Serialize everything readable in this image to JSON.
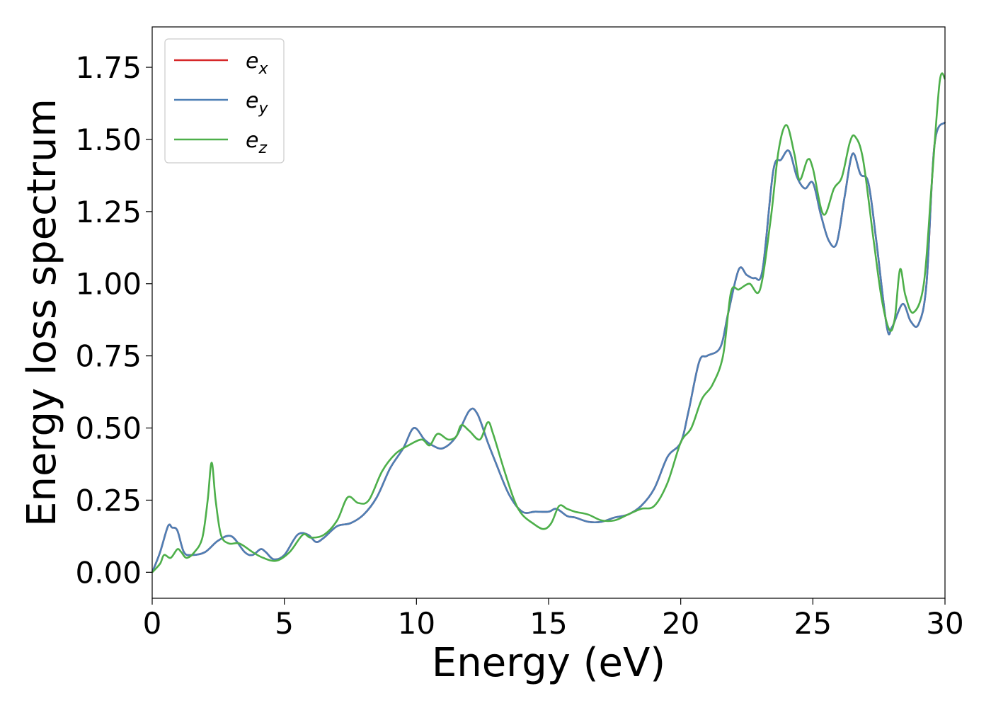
{
  "chart_data": {
    "type": "line",
    "title": "",
    "xlabel": "Energy (eV)",
    "ylabel": "Energy loss spectrum",
    "xlim": [
      0,
      30
    ],
    "ylim": [
      -0.09,
      1.89
    ],
    "xticks": [
      0,
      5,
      10,
      15,
      20,
      25,
      30
    ],
    "yticks": [
      0.0,
      0.25,
      0.5,
      0.75,
      1.0,
      1.25,
      1.5,
      1.75
    ],
    "xtick_labels": [
      "0",
      "5",
      "10",
      "15",
      "20",
      "25",
      "30"
    ],
    "ytick_labels": [
      "0.00",
      "0.25",
      "0.50",
      "0.75",
      "1.00",
      "1.25",
      "1.50",
      "1.75"
    ],
    "grid": false,
    "legend_position": "top-left",
    "series": [
      {
        "name": "e",
        "subscript": "x",
        "color": "#d62728",
        "x": [
          0,
          0.3,
          0.6,
          0.75,
          0.95,
          1.2,
          1.5,
          2.0,
          2.5,
          3.0,
          3.5,
          3.8,
          4.1,
          4.3,
          4.6,
          5.0,
          5.5,
          5.9,
          6.2,
          6.5,
          7.0,
          7.5,
          8.0,
          8.5,
          9.0,
          9.5,
          9.9,
          10.3,
          10.6,
          11.0,
          11.5,
          12.0,
          12.3,
          12.7,
          13.0,
          13.5,
          14.0,
          14.5,
          15.0,
          15.3,
          15.7,
          16.0,
          16.5,
          17.0,
          17.5,
          18.0,
          18.5,
          19.0,
          19.5,
          20.0,
          20.3,
          20.7,
          21.0,
          21.5,
          21.8,
          22.2,
          22.5,
          22.8,
          23.1,
          23.5,
          23.8,
          24.1,
          24.4,
          24.7,
          25.0,
          25.3,
          25.6,
          25.9,
          26.2,
          26.5,
          26.8,
          27.1,
          27.4,
          27.8,
          28.0,
          28.4,
          28.7,
          29.0,
          29.3,
          29.6,
          30.0
        ],
        "values": [
          0.0,
          0.07,
          0.16,
          0.155,
          0.145,
          0.07,
          0.06,
          0.07,
          0.11,
          0.125,
          0.07,
          0.06,
          0.08,
          0.07,
          0.045,
          0.06,
          0.13,
          0.13,
          0.105,
          0.12,
          0.16,
          0.17,
          0.2,
          0.26,
          0.36,
          0.43,
          0.5,
          0.46,
          0.44,
          0.43,
          0.47,
          0.56,
          0.55,
          0.45,
          0.38,
          0.27,
          0.21,
          0.21,
          0.21,
          0.22,
          0.195,
          0.19,
          0.175,
          0.175,
          0.19,
          0.2,
          0.23,
          0.29,
          0.4,
          0.45,
          0.56,
          0.73,
          0.75,
          0.78,
          0.9,
          1.05,
          1.03,
          1.02,
          1.05,
          1.39,
          1.43,
          1.46,
          1.37,
          1.33,
          1.35,
          1.24,
          1.15,
          1.14,
          1.3,
          1.45,
          1.38,
          1.35,
          1.15,
          0.85,
          0.85,
          0.93,
          0.87,
          0.86,
          1.0,
          1.48,
          1.56
        ]
      },
      {
        "name": "e",
        "subscript": "y",
        "color": "#4d7fb5",
        "x": [
          0,
          0.3,
          0.6,
          0.75,
          0.95,
          1.2,
          1.5,
          2.0,
          2.5,
          3.0,
          3.5,
          3.8,
          4.1,
          4.3,
          4.6,
          5.0,
          5.5,
          5.9,
          6.2,
          6.5,
          7.0,
          7.5,
          8.0,
          8.5,
          9.0,
          9.5,
          9.9,
          10.3,
          10.6,
          11.0,
          11.5,
          12.0,
          12.3,
          12.7,
          13.0,
          13.5,
          14.0,
          14.5,
          15.0,
          15.3,
          15.7,
          16.0,
          16.5,
          17.0,
          17.5,
          18.0,
          18.5,
          19.0,
          19.5,
          20.0,
          20.3,
          20.7,
          21.0,
          21.5,
          21.8,
          22.2,
          22.5,
          22.8,
          23.1,
          23.5,
          23.8,
          24.1,
          24.4,
          24.7,
          25.0,
          25.3,
          25.6,
          25.9,
          26.2,
          26.5,
          26.8,
          27.1,
          27.4,
          27.8,
          28.0,
          28.4,
          28.7,
          29.0,
          29.3,
          29.6,
          30.0
        ],
        "values": [
          0.0,
          0.07,
          0.16,
          0.155,
          0.145,
          0.07,
          0.06,
          0.07,
          0.11,
          0.125,
          0.07,
          0.06,
          0.08,
          0.07,
          0.045,
          0.06,
          0.13,
          0.13,
          0.105,
          0.12,
          0.16,
          0.17,
          0.2,
          0.26,
          0.36,
          0.43,
          0.5,
          0.46,
          0.44,
          0.43,
          0.47,
          0.56,
          0.55,
          0.45,
          0.38,
          0.27,
          0.21,
          0.21,
          0.21,
          0.22,
          0.195,
          0.19,
          0.175,
          0.175,
          0.19,
          0.2,
          0.23,
          0.29,
          0.4,
          0.45,
          0.56,
          0.73,
          0.75,
          0.78,
          0.9,
          1.05,
          1.03,
          1.02,
          1.05,
          1.39,
          1.43,
          1.46,
          1.37,
          1.33,
          1.35,
          1.24,
          1.15,
          1.14,
          1.3,
          1.45,
          1.38,
          1.35,
          1.15,
          0.85,
          0.85,
          0.93,
          0.87,
          0.86,
          1.0,
          1.48,
          1.56
        ]
      },
      {
        "name": "e",
        "subscript": "z",
        "color": "#4daf4a",
        "x": [
          0,
          0.3,
          0.45,
          0.7,
          0.95,
          1.1,
          1.3,
          1.6,
          1.9,
          2.1,
          2.25,
          2.4,
          2.6,
          2.9,
          3.3,
          3.8,
          4.2,
          4.7,
          5.2,
          5.7,
          6.0,
          6.5,
          7.0,
          7.4,
          7.8,
          8.2,
          8.7,
          9.2,
          9.7,
          10.2,
          10.5,
          10.8,
          11.2,
          11.5,
          11.7,
          12.0,
          12.4,
          12.7,
          12.9,
          13.3,
          13.7,
          14.0,
          14.4,
          14.8,
          15.1,
          15.4,
          15.7,
          16.0,
          16.5,
          17.0,
          17.5,
          18.0,
          18.5,
          19.0,
          19.5,
          20.0,
          20.4,
          20.8,
          21.2,
          21.6,
          21.9,
          22.2,
          22.6,
          23.0,
          23.4,
          23.7,
          24.0,
          24.3,
          24.5,
          24.8,
          25.0,
          25.4,
          25.8,
          26.1,
          26.4,
          26.6,
          26.9,
          27.3,
          27.6,
          27.9,
          28.1,
          28.3,
          28.5,
          28.8,
          29.2,
          29.5,
          29.8,
          30.0
        ],
        "values": [
          0.0,
          0.03,
          0.06,
          0.05,
          0.08,
          0.07,
          0.05,
          0.07,
          0.12,
          0.25,
          0.38,
          0.25,
          0.13,
          0.1,
          0.1,
          0.07,
          0.05,
          0.04,
          0.07,
          0.13,
          0.12,
          0.13,
          0.18,
          0.26,
          0.24,
          0.25,
          0.35,
          0.41,
          0.44,
          0.46,
          0.44,
          0.48,
          0.46,
          0.47,
          0.51,
          0.49,
          0.46,
          0.52,
          0.48,
          0.36,
          0.25,
          0.2,
          0.17,
          0.15,
          0.17,
          0.23,
          0.22,
          0.21,
          0.2,
          0.18,
          0.18,
          0.2,
          0.22,
          0.23,
          0.31,
          0.45,
          0.5,
          0.6,
          0.65,
          0.75,
          0.97,
          0.98,
          1.0,
          0.98,
          1.22,
          1.46,
          1.55,
          1.45,
          1.36,
          1.43,
          1.4,
          1.24,
          1.33,
          1.37,
          1.49,
          1.51,
          1.43,
          1.15,
          0.95,
          0.84,
          0.88,
          1.05,
          0.96,
          0.9,
          1.0,
          1.35,
          1.7,
          1.71
        ]
      }
    ]
  }
}
